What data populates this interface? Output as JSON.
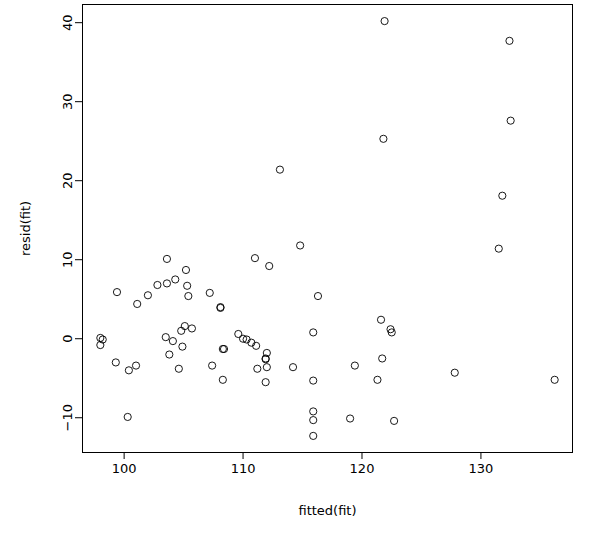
{
  "chart_data": {
    "type": "scatter",
    "x_label": "fitted(fit)",
    "y_label": "resid(fit)",
    "color": "#000000",
    "marker": "open_circle",
    "grid": false,
    "xlim": [
      96.5,
      137.7
    ],
    "ylim": [
      -14.4,
      42.3
    ],
    "xticks": [
      100,
      110,
      120,
      130
    ],
    "yticks": [
      -10,
      0,
      10,
      20,
      30,
      40
    ],
    "x": [
      98.0,
      98.0,
      98.2,
      99.3,
      99.4,
      100.3,
      100.4,
      101.0,
      101.1,
      102.0,
      102.8,
      103.6,
      103.6,
      103.5,
      103.8,
      104.1,
      104.3,
      104.6,
      104.8,
      104.9,
      105.1,
      105.2,
      105.3,
      105.4,
      105.7,
      107.2,
      107.4,
      108.1,
      108.1,
      108.3,
      108.4,
      108.3,
      109.6,
      110.0,
      110.3,
      110.7,
      111.1,
      111.0,
      111.2,
      111.9,
      111.9,
      111.9,
      112.0,
      112.0,
      112.2,
      113.1,
      114.2,
      114.8,
      115.9,
      115.9,
      115.9,
      115.9,
      115.9,
      116.3,
      119.0,
      119.4,
      121.3,
      121.6,
      121.7,
      121.8,
      121.9,
      122.4,
      122.5,
      122.7,
      127.8,
      131.5,
      131.8,
      132.4,
      132.5,
      136.2
    ],
    "y": [
      0.1,
      -0.8,
      -0.1,
      -3.0,
      5.9,
      -9.9,
      -4.0,
      -3.4,
      4.4,
      5.5,
      6.8,
      10.1,
      7.0,
      0.2,
      -2.0,
      -0.3,
      7.5,
      -3.8,
      1.0,
      -1.0,
      1.6,
      8.7,
      6.7,
      5.4,
      1.3,
      5.8,
      -3.4,
      4.0,
      3.9,
      -1.3,
      -1.3,
      -5.2,
      0.6,
      0.0,
      -0.1,
      -0.5,
      -0.9,
      10.2,
      -3.8,
      -5.5,
      -2.5,
      -2.6,
      -1.8,
      -3.6,
      9.2,
      21.4,
      -3.6,
      11.8,
      0.8,
      -5.3,
      -9.2,
      -10.3,
      -12.3,
      5.4,
      -10.1,
      -3.4,
      -5.2,
      2.4,
      -2.5,
      25.3,
      40.2,
      1.2,
      0.8,
      -10.4,
      -4.3,
      11.4,
      18.1,
      37.7,
      27.6,
      -5.2
    ]
  }
}
